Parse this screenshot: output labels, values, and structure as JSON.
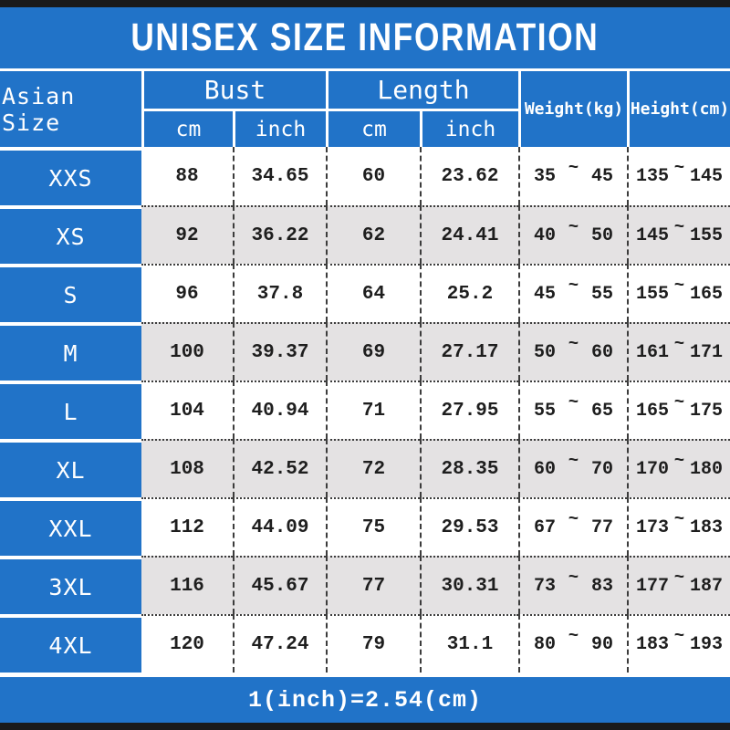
{
  "title": "UNISEX SIZE INFORMATION",
  "footer": "1(inch)=2.54(cm)",
  "colors": {
    "header_blue": "#2173C8",
    "row_alt_gray": "#E4E2E3",
    "bar_black": "#1A1A1A",
    "text_dark": "#1E1E1E",
    "text_white": "#FFFFFF"
  },
  "chart_data": {
    "type": "table",
    "title": "UNISEX SIZE INFORMATION",
    "tilde": "~",
    "columns": {
      "size": "Asian Size",
      "bust_group": "Bust",
      "length_group": "Length",
      "weight": "Weight(kg)",
      "height": "Height(cm)"
    },
    "subheaders": [
      "cm",
      "inch",
      "cm",
      "inch"
    ],
    "rows": [
      {
        "size": "XXS",
        "bust_cm": "88",
        "bust_inch": "34.65",
        "length_cm": "60",
        "length_inch": "23.62",
        "weight_min": "35",
        "weight_max": "45",
        "height_min": "135",
        "height_max": "145"
      },
      {
        "size": "XS",
        "bust_cm": "92",
        "bust_inch": "36.22",
        "length_cm": "62",
        "length_inch": "24.41",
        "weight_min": "40",
        "weight_max": "50",
        "height_min": "145",
        "height_max": "155"
      },
      {
        "size": "S",
        "bust_cm": "96",
        "bust_inch": "37.8",
        "length_cm": "64",
        "length_inch": "25.2",
        "weight_min": "45",
        "weight_max": "55",
        "height_min": "155",
        "height_max": "165"
      },
      {
        "size": "M",
        "bust_cm": "100",
        "bust_inch": "39.37",
        "length_cm": "69",
        "length_inch": "27.17",
        "weight_min": "50",
        "weight_max": "60",
        "height_min": "161",
        "height_max": "171"
      },
      {
        "size": "L",
        "bust_cm": "104",
        "bust_inch": "40.94",
        "length_cm": "71",
        "length_inch": "27.95",
        "weight_min": "55",
        "weight_max": "65",
        "height_min": "165",
        "height_max": "175"
      },
      {
        "size": "XL",
        "bust_cm": "108",
        "bust_inch": "42.52",
        "length_cm": "72",
        "length_inch": "28.35",
        "weight_min": "60",
        "weight_max": "70",
        "height_min": "170",
        "height_max": "180"
      },
      {
        "size": "XXL",
        "bust_cm": "112",
        "bust_inch": "44.09",
        "length_cm": "75",
        "length_inch": "29.53",
        "weight_min": "67",
        "weight_max": "77",
        "height_min": "173",
        "height_max": "183"
      },
      {
        "size": "3XL",
        "bust_cm": "116",
        "bust_inch": "45.67",
        "length_cm": "77",
        "length_inch": "30.31",
        "weight_min": "73",
        "weight_max": "83",
        "height_min": "177",
        "height_max": "187"
      },
      {
        "size": "4XL",
        "bust_cm": "120",
        "bust_inch": "47.24",
        "length_cm": "79",
        "length_inch": "31.1",
        "weight_min": "80",
        "weight_max": "90",
        "height_min": "183",
        "height_max": "193"
      }
    ],
    "footer_note": "1(inch)=2.54(cm)"
  }
}
